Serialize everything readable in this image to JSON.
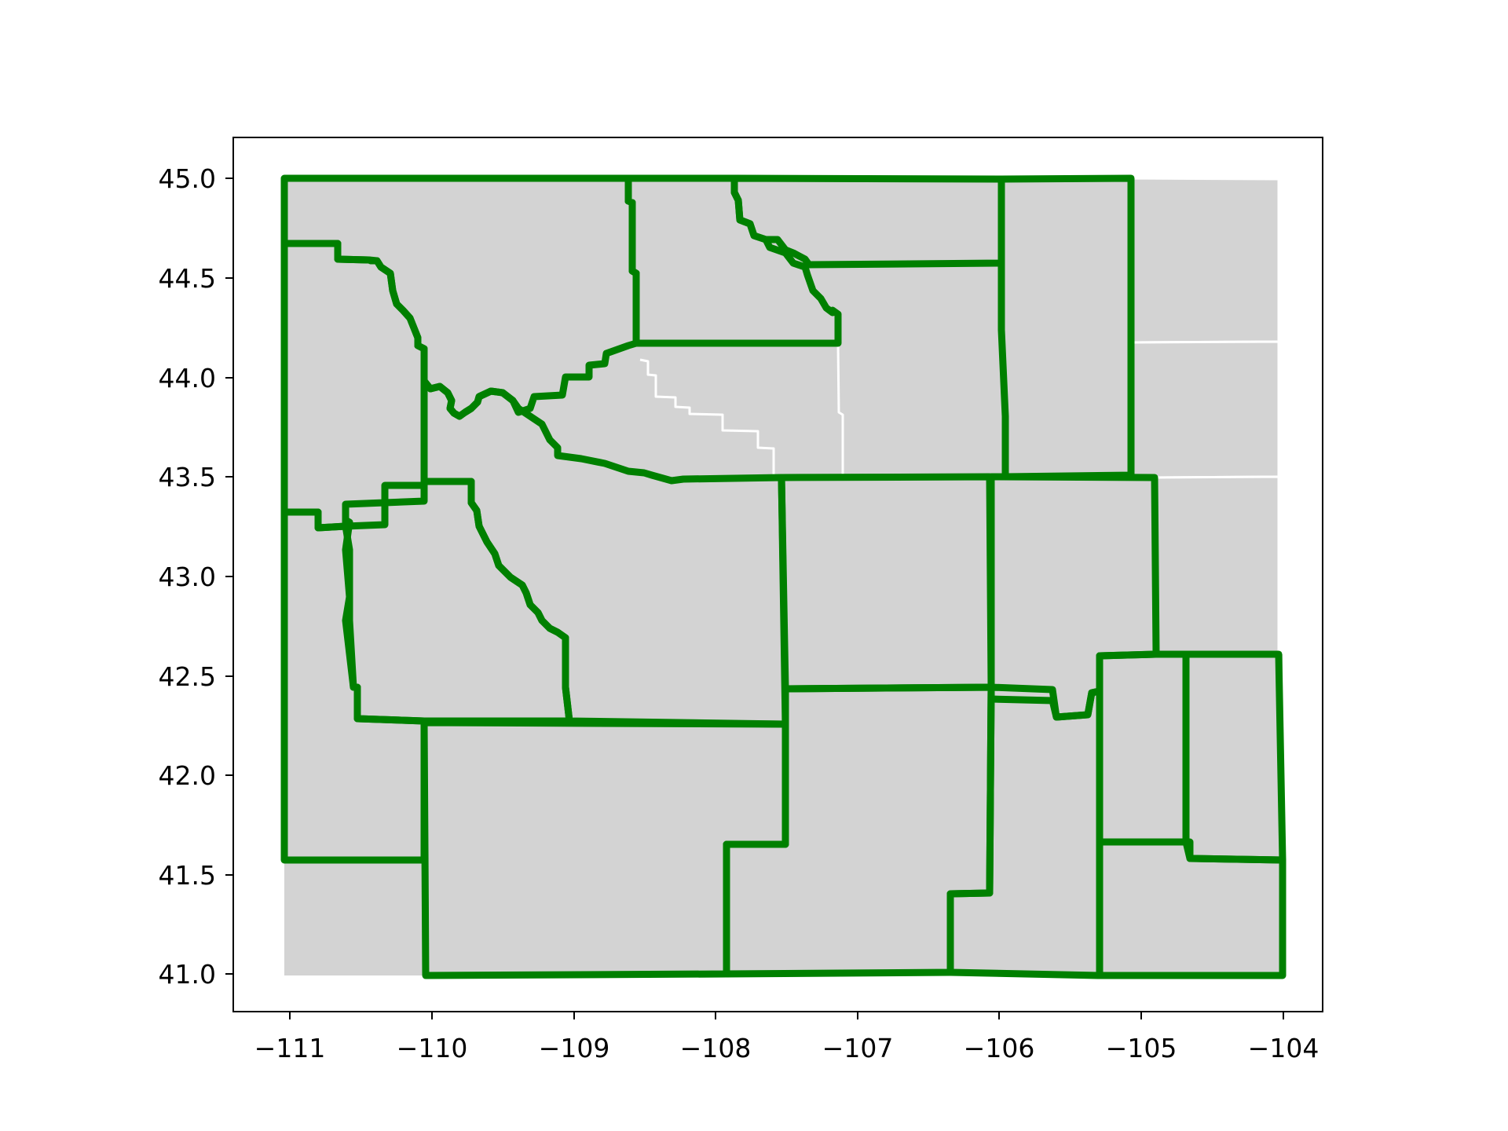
{
  "map": {
    "x_ticks": [
      "−111",
      "−110",
      "−109",
      "−108",
      "−107",
      "−106",
      "−105",
      "−104"
    ],
    "y_ticks": [
      "45.0",
      "44.5",
      "44.0",
      "43.5",
      "43.0",
      "42.5",
      "42.0",
      "41.5",
      "41.0"
    ],
    "colors": {
      "county_fill": "#d3d3d3",
      "county_border": "#ffffff",
      "highlight_outline": "#008000",
      "axes": "#000000",
      "background": "#ffffff"
    },
    "extent": {
      "lon": [
        -111.05,
        -104.05
      ],
      "lat": [
        41.0,
        45.0
      ]
    },
    "layers": [
      {
        "name": "all-counties",
        "style": "gray fill with thin white borders"
      },
      {
        "name": "highlighted-counties",
        "style": "thick green outlines, no fill"
      }
    ]
  }
}
